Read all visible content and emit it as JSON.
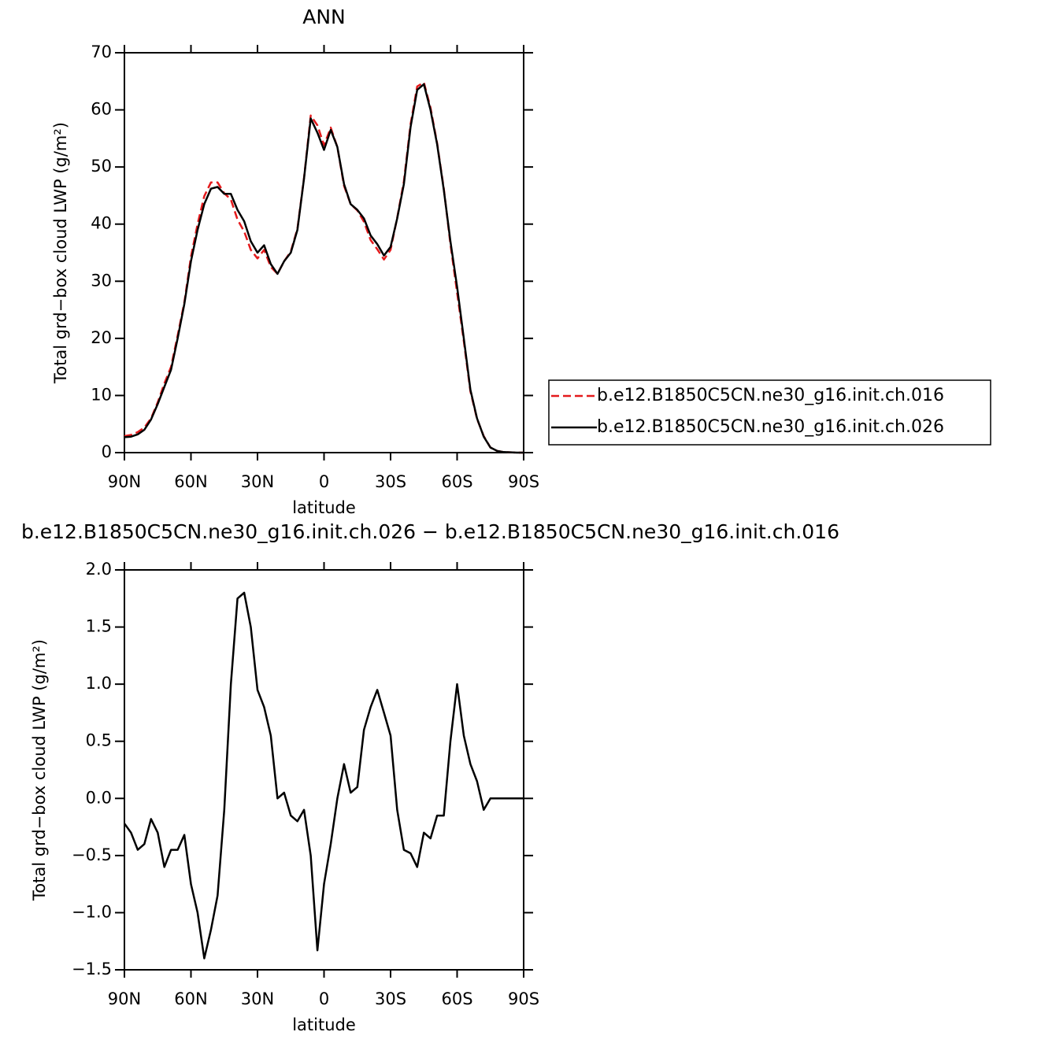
{
  "chart_data": [
    {
      "type": "line",
      "title": "ANN",
      "xlabel": "latitude",
      "ylabel": "Total grd−box cloud LWP (g/m²)",
      "x": [
        90,
        87,
        84,
        81,
        78,
        75,
        72,
        69,
        66,
        63,
        60,
        57,
        54,
        51,
        48,
        45,
        42,
        39,
        36,
        33,
        30,
        27,
        24,
        21,
        18,
        15,
        12,
        9,
        6,
        3,
        0,
        -3,
        -6,
        -9,
        -12,
        -15,
        -18,
        -21,
        -24,
        -27,
        -30,
        -33,
        -36,
        -39,
        -42,
        -45,
        -48,
        -51,
        -54,
        -57,
        -60,
        -63,
        -66,
        -69,
        -72,
        -75,
        -78,
        -81,
        -84,
        -87,
        -90
      ],
      "series": [
        {
          "name": "b.e12.B1850C5CN.ne30_g16.init.ch.016",
          "color": "#e41a1c",
          "dash": true,
          "values": [
            2.9,
            3.1,
            3.6,
            4.4,
            6.0,
            8.8,
            12.1,
            15.0,
            20.5,
            26.3,
            34.3,
            40,
            44.9,
            47.3,
            47.3,
            45.4,
            44.3,
            40.8,
            38.7,
            35.5,
            34,
            35.5,
            32.5,
            31.3,
            33.5,
            35.2,
            39.2,
            48.1,
            59,
            57.3,
            53.8,
            56.9,
            53.5,
            46.7,
            43.5,
            42.4,
            40.4,
            37.2,
            35.6,
            33.8,
            35.5,
            41.1,
            47.5,
            57.5,
            64.1,
            64.8,
            60.4,
            54.2,
            46.2,
            36.5,
            28,
            19.5,
            10.7,
            5.9,
            2.9,
            0.9,
            0.3,
            0.1,
            0.05,
            0,
            0
          ]
        },
        {
          "name": "b.e12.B1850C5CN.ne30_g16.init.ch.026",
          "color": "#000000",
          "dash": false,
          "values": [
            2.7,
            2.8,
            3.2,
            4.0,
            5.8,
            8.5,
            11.5,
            14.5,
            20,
            26,
            33.5,
            39,
            43.5,
            46.2,
            46.5,
            45.3,
            45.3,
            42.5,
            40.5,
            37,
            35,
            36.3,
            33,
            31.3,
            33.5,
            35,
            39,
            48,
            58.5,
            56,
            53,
            56.5,
            53.5,
            47,
            43.5,
            42.5,
            41,
            38,
            36.5,
            34.5,
            36,
            41,
            47,
            57,
            63.5,
            64.5,
            60,
            54,
            46,
            37,
            29,
            20,
            11,
            6,
            2.8,
            0.9,
            0.3,
            0.1,
            0.05,
            0,
            0
          ]
        }
      ],
      "xlim": [
        90,
        -90
      ],
      "xticks": [
        {
          "value": 90,
          "label": "90N"
        },
        {
          "value": 60,
          "label": "60N"
        },
        {
          "value": 30,
          "label": "30N"
        },
        0,
        {
          "value": -30,
          "label": "30S"
        },
        {
          "value": -60,
          "label": "60S"
        },
        {
          "value": -90,
          "label": "90S"
        }
      ],
      "ylim": [
        0,
        70
      ],
      "yticks": [
        0,
        10,
        20,
        30,
        40,
        50,
        60,
        70
      ],
      "grid": false,
      "legend": "right"
    },
    {
      "type": "line",
      "title": "b.e12.B1850C5CN.ne30_g16.init.ch.026 − b.e12.B1850C5CN.ne30_g16.init.ch.016",
      "xlabel": "latitude",
      "ylabel": "Total grd−box cloud LWP (g/m²)",
      "x": [
        90,
        87,
        84,
        81,
        78,
        75,
        72,
        69,
        66,
        63,
        60,
        57,
        54,
        51,
        48,
        45,
        42,
        39,
        36,
        33,
        30,
        27,
        24,
        21,
        18,
        15,
        12,
        9,
        6,
        3,
        0,
        -3,
        -6,
        -9,
        -12,
        -15,
        -18,
        -21,
        -24,
        -27,
        -30,
        -33,
        -36,
        -39,
        -42,
        -45,
        -48,
        -51,
        -54,
        -57,
        -60,
        -63,
        -66,
        -69,
        -72,
        -75,
        -78,
        -81,
        -84,
        -87,
        -90
      ],
      "color": "#000000",
      "values": [
        -0.22,
        -0.3,
        -0.45,
        -0.4,
        -0.18,
        -0.3,
        -0.6,
        -0.45,
        -0.45,
        -0.32,
        -0.75,
        -1.0,
        -1.4,
        -1.15,
        -0.85,
        -0.1,
        1.0,
        1.75,
        1.8,
        1.5,
        0.95,
        0.8,
        0.55,
        0.0,
        0.05,
        -0.15,
        -0.2,
        -0.1,
        -0.5,
        -1.33,
        -0.75,
        -0.4,
        0.0,
        0.3,
        0.05,
        0.1,
        0.6,
        0.8,
        0.95,
        0.75,
        0.55,
        -0.1,
        -0.45,
        -0.48,
        -0.6,
        -0.3,
        -0.35,
        -0.15,
        -0.15,
        0.5,
        1.0,
        0.55,
        0.3,
        0.15,
        -0.1,
        0.0,
        0.0,
        0.0,
        0.0,
        0.0,
        0.0
      ],
      "xlim": [
        90,
        -90
      ],
      "xticks": [
        {
          "value": 90,
          "label": "90N"
        },
        {
          "value": 60,
          "label": "60N"
        },
        {
          "value": 30,
          "label": "30N"
        },
        0,
        {
          "value": -30,
          "label": "30S"
        },
        {
          "value": -60,
          "label": "60S"
        },
        {
          "value": -90,
          "label": "90S"
        }
      ],
      "ylim": [
        -1.5,
        2.0
      ],
      "yticks": [
        {
          "value": -1.5,
          "label": "−1.5"
        },
        {
          "value": -1.0,
          "label": "−1.0"
        },
        {
          "value": -0.5,
          "label": "−0.5"
        },
        {
          "value": 0,
          "label": "0.0"
        },
        {
          "value": 0.5,
          "label": "0.5"
        },
        {
          "value": 1.0,
          "label": "1.0"
        },
        {
          "value": 1.5,
          "label": "1.5"
        },
        {
          "value": 2.0,
          "label": "2.0"
        }
      ],
      "grid": false
    }
  ]
}
